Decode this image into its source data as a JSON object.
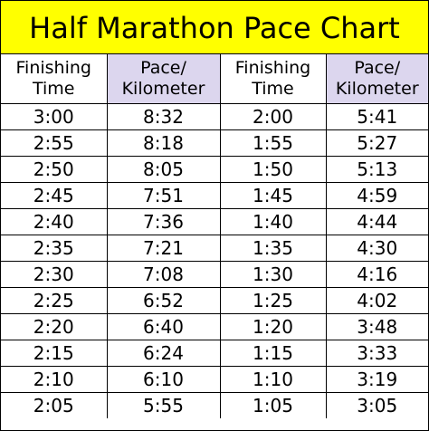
{
  "title": "Half Marathon Pace Chart",
  "colors": {
    "title_background": "#ffff00",
    "pace_header_background": "#dcd6ee",
    "grid_lines": "#000000"
  },
  "headers": {
    "finishing_line1": "Finishing",
    "finishing_line2": "Time",
    "pace_line1": "Pace/",
    "pace_line2": "Kilometer"
  },
  "rows": [
    {
      "time_a": "3:00",
      "pace_a": "8:32",
      "time_b": "2:00",
      "pace_b": "5:41"
    },
    {
      "time_a": "2:55",
      "pace_a": "8:18",
      "time_b": "1:55",
      "pace_b": "5:27"
    },
    {
      "time_a": "2:50",
      "pace_a": "8:05",
      "time_b": "1:50",
      "pace_b": "5:13"
    },
    {
      "time_a": "2:45",
      "pace_a": "7:51",
      "time_b": "1:45",
      "pace_b": "4:59"
    },
    {
      "time_a": "2:40",
      "pace_a": "7:36",
      "time_b": "1:40",
      "pace_b": "4:44"
    },
    {
      "time_a": "2:35",
      "pace_a": "7:21",
      "time_b": "1:35",
      "pace_b": "4:30"
    },
    {
      "time_a": "2:30",
      "pace_a": "7:08",
      "time_b": "1:30",
      "pace_b": "4:16"
    },
    {
      "time_a": "2:25",
      "pace_a": "6:52",
      "time_b": "1:25",
      "pace_b": "4:02"
    },
    {
      "time_a": "2:20",
      "pace_a": "6:40",
      "time_b": "1:20",
      "pace_b": "3:48"
    },
    {
      "time_a": "2:15",
      "pace_a": "6:24",
      "time_b": "1:15",
      "pace_b": "3:33"
    },
    {
      "time_a": "2:10",
      "pace_a": "6:10",
      "time_b": "1:10",
      "pace_b": "3:19"
    },
    {
      "time_a": "2:05",
      "pace_a": "5:55",
      "time_b": "1:05",
      "pace_b": "3:05"
    }
  ]
}
